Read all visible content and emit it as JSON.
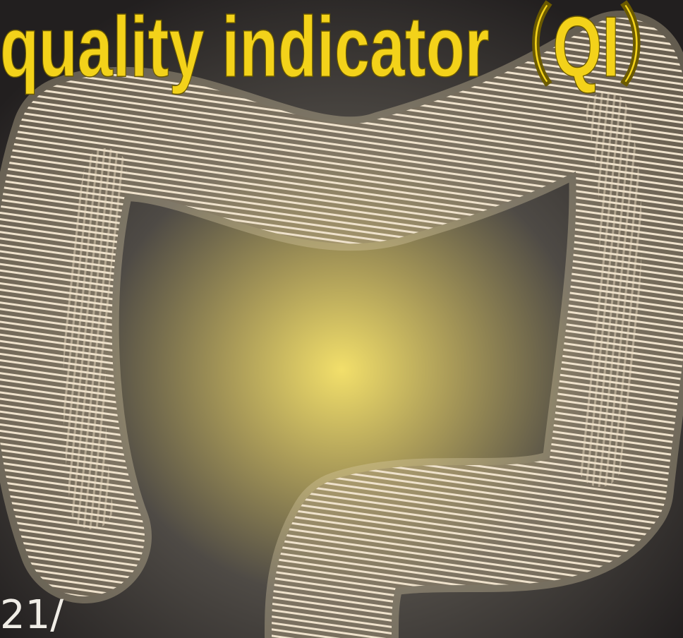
{
  "title": "quality indicator（QI）",
  "corner_text": "21/"
}
